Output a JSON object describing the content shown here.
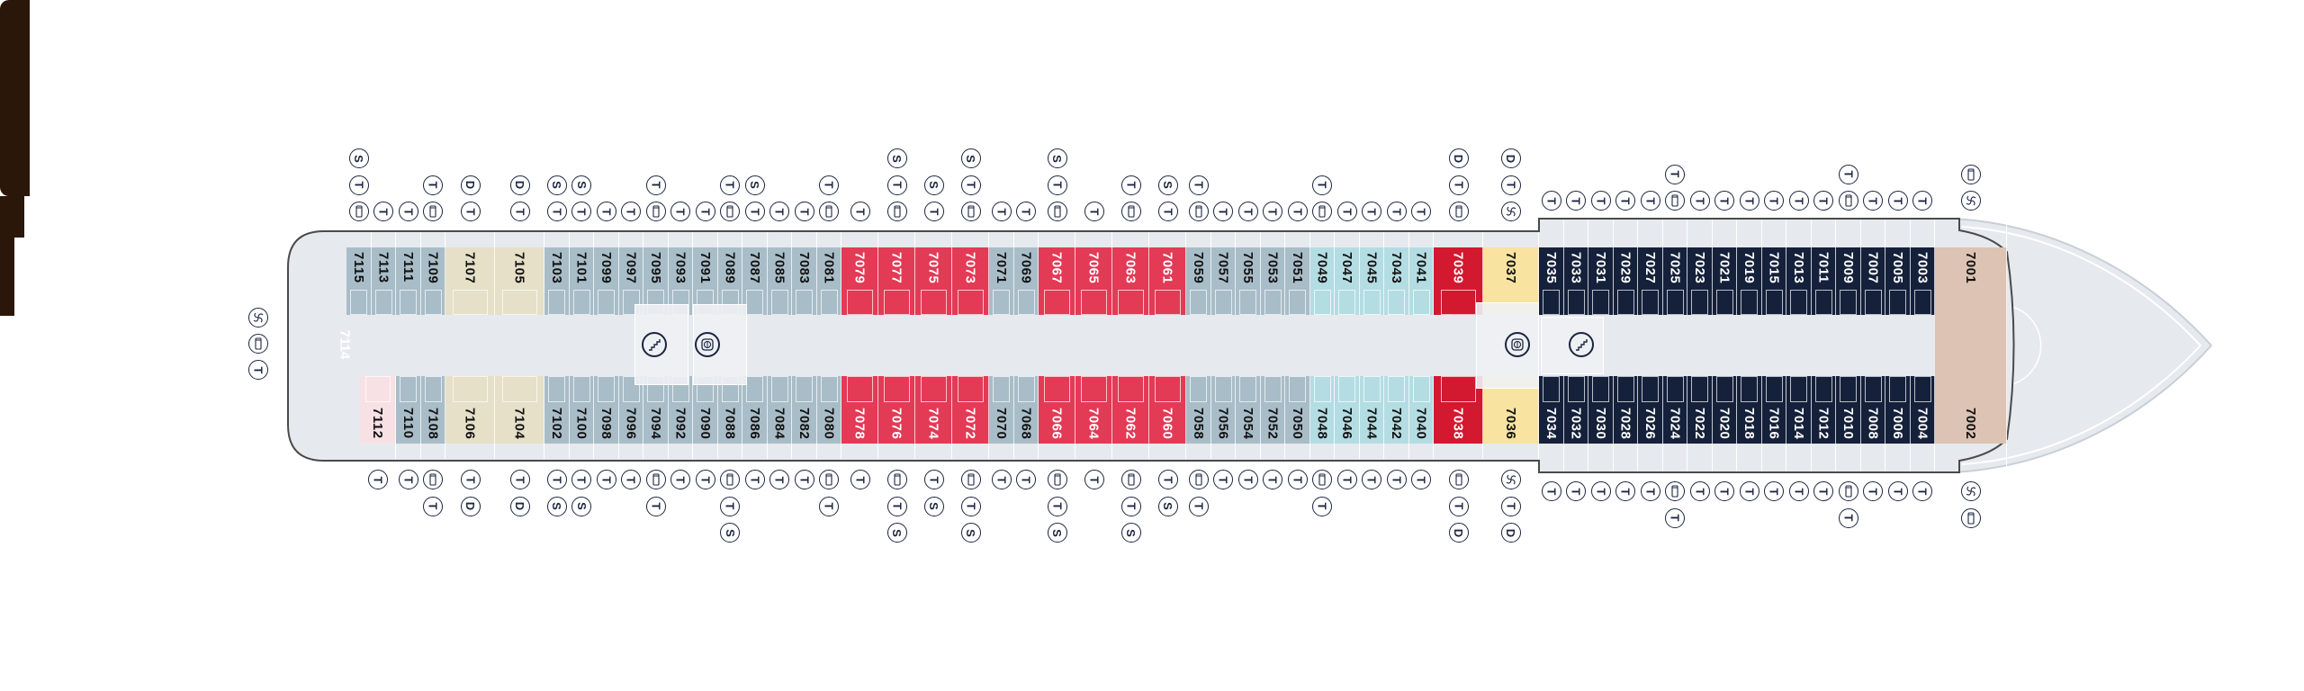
{
  "colors": {
    "hull": "#e6eaee",
    "hull_outline": "#4a4a4a",
    "grey": "#a8bdc8",
    "beige": "#e5e0c7",
    "red": "#e33a56",
    "cyan": "#b4dde3",
    "darkred": "#d2192f",
    "yellow": "#f8e3a0",
    "navy": "#15213b",
    "tan": "#dcc3b3",
    "brown": "#2a1709",
    "pink": "#f8e1e5",
    "icon_ink": "#1c2540"
  },
  "icon_legend": {
    "T": "T",
    "S": "S",
    "D": "D",
    "sofa": "sofa-bed-icon",
    "swirl": "swirl-icon"
  },
  "stern_suite": {
    "number": "7114",
    "category": "brown",
    "icons": [
      "swirl",
      "sofa",
      "T"
    ]
  },
  "features": {
    "stairs": "stairs-icon",
    "elevator": "elevator-icon"
  },
  "port_cabins": [
    {
      "n": "7115",
      "cat": "grey",
      "icons": [
        "sofa",
        "T",
        "S"
      ]
    },
    {
      "n": "7113",
      "cat": "grey",
      "icons": [
        "T"
      ]
    },
    {
      "n": "7111",
      "cat": "grey",
      "icons": [
        "T"
      ]
    },
    {
      "n": "7109",
      "cat": "grey",
      "icons": [
        "sofa",
        "T"
      ]
    },
    {
      "n": "7107",
      "cat": "beige",
      "icons": [
        "T",
        "D"
      ]
    },
    {
      "n": "7105",
      "cat": "beige",
      "icons": [
        "T",
        "D"
      ]
    },
    {
      "n": "7103",
      "cat": "grey",
      "icons": [
        "T",
        "S"
      ]
    },
    {
      "n": "7101",
      "cat": "grey",
      "icons": [
        "T",
        "S"
      ]
    },
    {
      "n": "7099",
      "cat": "grey",
      "icons": [
        "T"
      ]
    },
    {
      "n": "7097",
      "cat": "grey",
      "icons": [
        "T"
      ]
    },
    {
      "n": "7095",
      "cat": "grey",
      "icons": [
        "sofa",
        "T"
      ]
    },
    {
      "n": "7093",
      "cat": "grey",
      "icons": [
        "T"
      ]
    },
    {
      "n": "7091",
      "cat": "grey",
      "icons": [
        "T"
      ]
    },
    {
      "n": "7089",
      "cat": "grey",
      "icons": [
        "sofa",
        "T"
      ]
    },
    {
      "n": "7087",
      "cat": "grey",
      "icons": [
        "T",
        "S"
      ]
    },
    {
      "n": "7085",
      "cat": "grey",
      "icons": [
        "T"
      ]
    },
    {
      "n": "7083",
      "cat": "grey",
      "icons": [
        "T"
      ]
    },
    {
      "n": "7081",
      "cat": "grey",
      "icons": [
        "sofa",
        "T"
      ]
    },
    {
      "n": "7079",
      "cat": "red",
      "icons": [
        "T"
      ]
    },
    {
      "n": "7077",
      "cat": "red",
      "icons": [
        "sofa",
        "T",
        "S"
      ]
    },
    {
      "n": "7075",
      "cat": "red",
      "icons": [
        "T",
        "S"
      ]
    },
    {
      "n": "7073",
      "cat": "red",
      "icons": [
        "sofa",
        "T",
        "S"
      ]
    },
    {
      "n": "7071",
      "cat": "grey",
      "icons": [
        "T"
      ]
    },
    {
      "n": "7069",
      "cat": "grey",
      "icons": [
        "T"
      ]
    },
    {
      "n": "7067",
      "cat": "red",
      "icons": [
        "sofa",
        "T",
        "S"
      ]
    },
    {
      "n": "7065",
      "cat": "red",
      "icons": [
        "T"
      ]
    },
    {
      "n": "7063",
      "cat": "red",
      "icons": [
        "sofa",
        "T"
      ]
    },
    {
      "n": "7061",
      "cat": "red",
      "icons": [
        "T",
        "S"
      ]
    },
    {
      "n": "7059",
      "cat": "grey",
      "icons": [
        "sofa",
        "T"
      ]
    },
    {
      "n": "7057",
      "cat": "grey",
      "icons": [
        "T"
      ]
    },
    {
      "n": "7055",
      "cat": "grey",
      "icons": [
        "T"
      ]
    },
    {
      "n": "7053",
      "cat": "grey",
      "icons": [
        "T"
      ]
    },
    {
      "n": "7051",
      "cat": "grey",
      "icons": [
        "T"
      ]
    },
    {
      "n": "7049",
      "cat": "cyan",
      "icons": [
        "sofa",
        "T"
      ]
    },
    {
      "n": "7047",
      "cat": "cyan",
      "icons": [
        "T"
      ]
    },
    {
      "n": "7045",
      "cat": "cyan",
      "icons": [
        "T"
      ]
    },
    {
      "n": "7043",
      "cat": "cyan",
      "icons": [
        "T"
      ]
    },
    {
      "n": "7041",
      "cat": "cyan",
      "icons": [
        "T"
      ]
    },
    {
      "n": "7039",
      "cat": "darkred",
      "icons": [
        "sofa",
        "T",
        "D"
      ]
    },
    {
      "n": "7037",
      "cat": "yellow",
      "icons": [
        "swirl",
        "T",
        "D"
      ]
    },
    {
      "n": "7035",
      "cat": "navy",
      "icons": [
        "T"
      ]
    },
    {
      "n": "7033",
      "cat": "navy",
      "icons": [
        "T"
      ]
    },
    {
      "n": "7031",
      "cat": "navy",
      "icons": [
        "T"
      ]
    },
    {
      "n": "7029",
      "cat": "navy",
      "icons": [
        "T"
      ]
    },
    {
      "n": "7027",
      "cat": "navy",
      "icons": [
        "T"
      ]
    },
    {
      "n": "7025",
      "cat": "navy",
      "icons": [
        "sofa",
        "T"
      ]
    },
    {
      "n": "7023",
      "cat": "navy",
      "icons": [
        "T"
      ]
    },
    {
      "n": "7021",
      "cat": "navy",
      "icons": [
        "T"
      ]
    },
    {
      "n": "7019",
      "cat": "navy",
      "icons": [
        "T"
      ]
    },
    {
      "n": "7015",
      "cat": "navy",
      "icons": [
        "T"
      ]
    },
    {
      "n": "7013",
      "cat": "navy",
      "icons": [
        "T"
      ]
    },
    {
      "n": "7011",
      "cat": "navy",
      "icons": [
        "T"
      ]
    },
    {
      "n": "7009",
      "cat": "navy",
      "icons": [
        "sofa",
        "T"
      ]
    },
    {
      "n": "7007",
      "cat": "navy",
      "icons": [
        "T"
      ]
    },
    {
      "n": "7005",
      "cat": "navy",
      "icons": [
        "T"
      ]
    },
    {
      "n": "7003",
      "cat": "navy",
      "icons": [
        "T"
      ]
    },
    {
      "n": "7001",
      "cat": "tan",
      "icons": [
        "swirl",
        "sofa"
      ]
    }
  ],
  "starboard_cabins": [
    {
      "n": "7112",
      "cat": "pink",
      "icons": [
        "T"
      ]
    },
    {
      "n": "7110",
      "cat": "grey",
      "icons": [
        "T"
      ]
    },
    {
      "n": "7108",
      "cat": "grey",
      "icons": [
        "sofa",
        "T"
      ]
    },
    {
      "n": "7106",
      "cat": "beige",
      "icons": [
        "T",
        "D"
      ]
    },
    {
      "n": "7104",
      "cat": "beige",
      "icons": [
        "T",
        "D"
      ]
    },
    {
      "n": "7102",
      "cat": "grey",
      "icons": [
        "T",
        "S"
      ]
    },
    {
      "n": "7100",
      "cat": "grey",
      "icons": [
        "T",
        "S"
      ]
    },
    {
      "n": "7098",
      "cat": "grey",
      "icons": [
        "T"
      ]
    },
    {
      "n": "7096",
      "cat": "grey",
      "icons": [
        "T"
      ]
    },
    {
      "n": "7094",
      "cat": "grey",
      "icons": [
        "sofa",
        "T"
      ]
    },
    {
      "n": "7092",
      "cat": "grey",
      "icons": [
        "T"
      ]
    },
    {
      "n": "7090",
      "cat": "grey",
      "icons": [
        "T"
      ]
    },
    {
      "n": "7088",
      "cat": "grey",
      "icons": [
        "sofa",
        "T",
        "S"
      ]
    },
    {
      "n": "7086",
      "cat": "grey",
      "icons": [
        "T"
      ]
    },
    {
      "n": "7084",
      "cat": "grey",
      "icons": [
        "T"
      ]
    },
    {
      "n": "7082",
      "cat": "grey",
      "icons": [
        "T"
      ]
    },
    {
      "n": "7080",
      "cat": "grey",
      "icons": [
        "sofa",
        "T"
      ]
    },
    {
      "n": "7078",
      "cat": "red",
      "icons": [
        "T"
      ]
    },
    {
      "n": "7076",
      "cat": "red",
      "icons": [
        "sofa",
        "T",
        "S"
      ]
    },
    {
      "n": "7074",
      "cat": "red",
      "icons": [
        "T",
        "S"
      ]
    },
    {
      "n": "7072",
      "cat": "red",
      "icons": [
        "sofa",
        "T",
        "S"
      ]
    },
    {
      "n": "7070",
      "cat": "grey",
      "icons": [
        "T"
      ]
    },
    {
      "n": "7068",
      "cat": "grey",
      "icons": [
        "T"
      ]
    },
    {
      "n": "7066",
      "cat": "red",
      "icons": [
        "sofa",
        "T",
        "S"
      ]
    },
    {
      "n": "7064",
      "cat": "red",
      "icons": [
        "T"
      ]
    },
    {
      "n": "7062",
      "cat": "red",
      "icons": [
        "sofa",
        "T",
        "S"
      ]
    },
    {
      "n": "7060",
      "cat": "red",
      "icons": [
        "T",
        "S"
      ]
    },
    {
      "n": "7058",
      "cat": "grey",
      "icons": [
        "sofa",
        "T"
      ]
    },
    {
      "n": "7056",
      "cat": "grey",
      "icons": [
        "T"
      ]
    },
    {
      "n": "7054",
      "cat": "grey",
      "icons": [
        "T"
      ]
    },
    {
      "n": "7052",
      "cat": "grey",
      "icons": [
        "T"
      ]
    },
    {
      "n": "7050",
      "cat": "grey",
      "icons": [
        "T"
      ]
    },
    {
      "n": "7048",
      "cat": "cyan",
      "icons": [
        "sofa",
        "T"
      ]
    },
    {
      "n": "7046",
      "cat": "cyan",
      "icons": [
        "T"
      ]
    },
    {
      "n": "7044",
      "cat": "cyan",
      "icons": [
        "T"
      ]
    },
    {
      "n": "7042",
      "cat": "cyan",
      "icons": [
        "T"
      ]
    },
    {
      "n": "7040",
      "cat": "cyan",
      "icons": [
        "T"
      ]
    },
    {
      "n": "7038",
      "cat": "darkred",
      "icons": [
        "sofa",
        "T",
        "D"
      ]
    },
    {
      "n": "7036",
      "cat": "yellow",
      "icons": [
        "swirl",
        "T",
        "D"
      ]
    },
    {
      "n": "7034",
      "cat": "navy",
      "icons": [
        "T"
      ]
    },
    {
      "n": "7032",
      "cat": "navy",
      "icons": [
        "T"
      ]
    },
    {
      "n": "7030",
      "cat": "navy",
      "icons": [
        "T"
      ]
    },
    {
      "n": "7028",
      "cat": "navy",
      "icons": [
        "T"
      ]
    },
    {
      "n": "7026",
      "cat": "navy",
      "icons": [
        "T"
      ]
    },
    {
      "n": "7024",
      "cat": "navy",
      "icons": [
        "sofa",
        "T"
      ]
    },
    {
      "n": "7022",
      "cat": "navy",
      "icons": [
        "T"
      ]
    },
    {
      "n": "7020",
      "cat": "navy",
      "icons": [
        "T"
      ]
    },
    {
      "n": "7018",
      "cat": "navy",
      "icons": [
        "T"
      ]
    },
    {
      "n": "7016",
      "cat": "navy",
      "icons": [
        "T"
      ]
    },
    {
      "n": "7014",
      "cat": "navy",
      "icons": [
        "T"
      ]
    },
    {
      "n": "7012",
      "cat": "navy",
      "icons": [
        "T"
      ]
    },
    {
      "n": "7010",
      "cat": "navy",
      "icons": [
        "sofa",
        "T"
      ]
    },
    {
      "n": "7008",
      "cat": "navy",
      "icons": [
        "T"
      ]
    },
    {
      "n": "7006",
      "cat": "navy",
      "icons": [
        "T"
      ]
    },
    {
      "n": "7004",
      "cat": "navy",
      "icons": [
        "T"
      ]
    },
    {
      "n": "7002",
      "cat": "tan",
      "icons": [
        "swirl",
        "sofa"
      ]
    }
  ]
}
